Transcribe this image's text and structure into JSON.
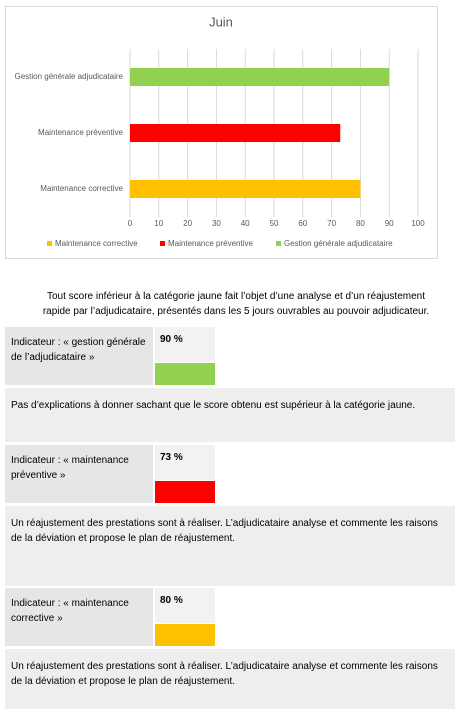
{
  "chart_data": {
    "type": "barh",
    "title": "Juin",
    "categories": [
      "Maintenance corrective",
      "Maintenance préventive",
      "Gestion générale adjudicataire"
    ],
    "values": [
      80,
      73,
      90
    ],
    "colors": [
      "#ffc000",
      "#ff0000",
      "#92d050"
    ],
    "xlim": [
      0,
      100
    ],
    "xticks": [
      0,
      10,
      20,
      30,
      40,
      50,
      60,
      70,
      80,
      90,
      100
    ],
    "grid": true,
    "legend": "bottom"
  },
  "document": {
    "intro": "Tout score inférieur à la catégorie jaune fait l’objet d’une analyse et d’un réajustement rapide par l’adjudicataire, présentés dans les 5 jours ouvrables au pouvoir adjudicateur.",
    "indicators": [
      {
        "label": "Indicateur : « gestion générale de l’adjudicataire »",
        "score": "90 %",
        "color": "#92d050",
        "explanation": "Pas d’explications à donner sachant que le score obtenu est supérieur à la catégorie jaune."
      },
      {
        "label": "Indicateur : « maintenance préventive »",
        "score": "73 %",
        "color": "#ff0000",
        "explanation": "Un réajustement des prestations sont à réaliser. L’adjudicataire analyse et commente les raisons de la déviation et propose le plan de réajustement."
      },
      {
        "label": "Indicateur : « maintenance corrective »",
        "score": "80 %",
        "color": "#ffc000",
        "explanation": "Un réajustement des prestations sont à réaliser. L’adjudicataire analyse et commente les raisons de la déviation et propose le plan de réajustement."
      }
    ]
  }
}
